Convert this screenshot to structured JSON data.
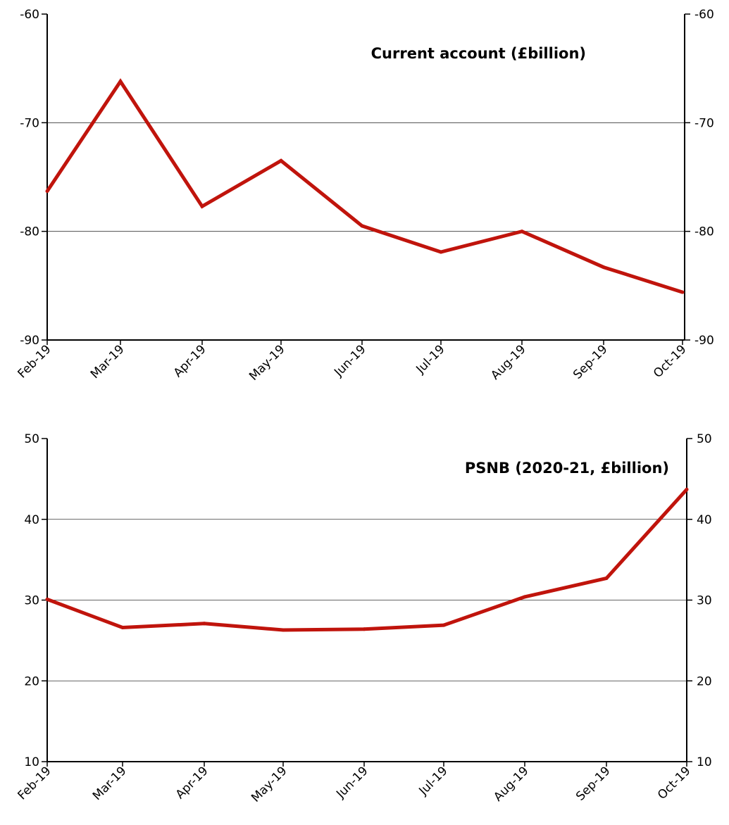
{
  "series_color": "#c0140c",
  "chart_data": [
    {
      "type": "line",
      "title": "Current account (£billion)",
      "categories": [
        "Feb-19",
        "Mar-19",
        "Apr-19",
        "May-19",
        "Jun-19",
        "Jul-19",
        "Aug-19",
        "Sep-19",
        "Oct-19"
      ],
      "series": [
        {
          "values": [
            -76.3,
            -66.2,
            -77.7,
            -73.5,
            -79.5,
            -81.9,
            -80.0,
            -83.3,
            -85.6
          ]
        }
      ],
      "ylim": [
        -90,
        -60
      ],
      "yticks": [
        -60,
        -70,
        -80,
        -90
      ],
      "gridlines": [
        -70,
        -80
      ],
      "grid": true,
      "legend": "none",
      "secondary_y_axis": true
    },
    {
      "type": "line",
      "title": "PSNB (2020-21, £billion)",
      "categories": [
        "Feb-19",
        "Mar-19",
        "Apr-19",
        "May-19",
        "Jun-19",
        "Jul-19",
        "Aug-19",
        "Sep-19",
        "Oct-19"
      ],
      "series": [
        {
          "values": [
            30.1,
            26.6,
            27.1,
            26.3,
            26.4,
            26.9,
            30.4,
            32.7,
            43.7
          ]
        }
      ],
      "ylim": [
        10,
        50
      ],
      "yticks": [
        50,
        40,
        30,
        20,
        10
      ],
      "gridlines": [
        40,
        30,
        20
      ],
      "grid": true,
      "legend": "none",
      "secondary_y_axis": true
    }
  ]
}
